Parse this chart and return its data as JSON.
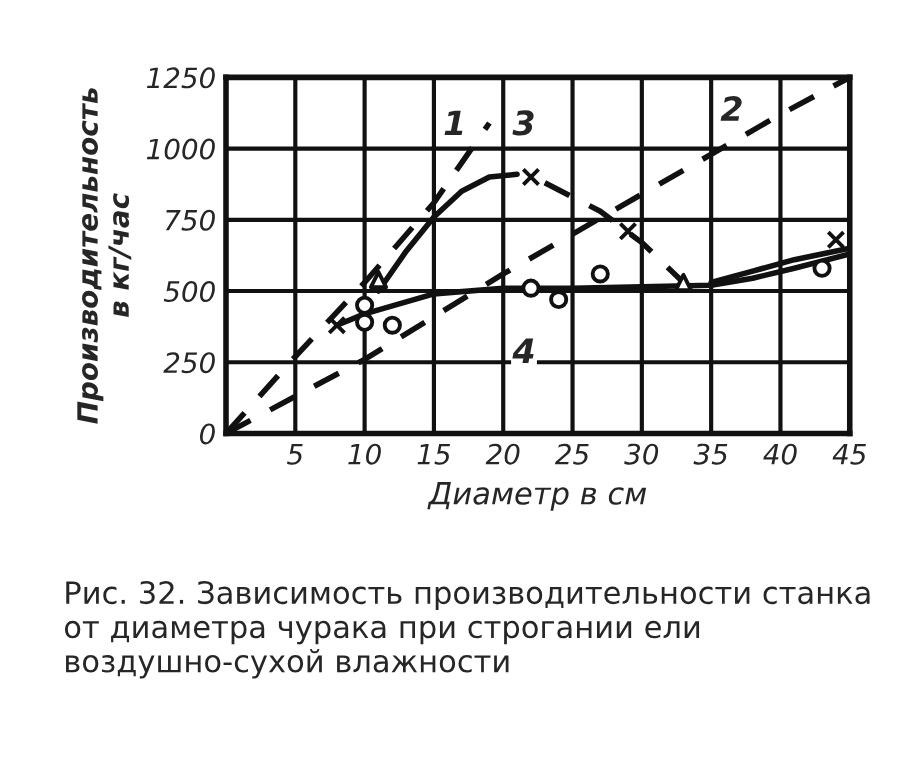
{
  "chart_data": {
    "type": "line",
    "xlabel": "Диаметр в см",
    "ylabel": "Производительность\nв кг/час",
    "xlim": [
      0,
      45
    ],
    "ylim": [
      0,
      1250
    ],
    "xticks": [
      5,
      10,
      15,
      20,
      25,
      30,
      35,
      40,
      45
    ],
    "yticks": [
      0,
      250,
      500,
      750,
      1000,
      1250
    ],
    "grid": true,
    "legend": false,
    "series": [
      {
        "line_style": "dashed",
        "color": "#111111",
        "x": [
          0,
          5,
          10,
          15,
          19
        ],
        "values": [
          0,
          270,
          530,
          810,
          1090
        ]
      },
      {
        "line_style": "dashed",
        "color": "#111111",
        "x": [
          0,
          10,
          20,
          30,
          40,
          45
        ],
        "values": [
          0,
          260,
          560,
          840,
          1120,
          1250
        ]
      },
      {
        "line_style": "solid",
        "color": "#111111",
        "x": [
          11,
          13,
          15,
          17,
          19,
          21
        ],
        "values": [
          500,
          640,
          760,
          850,
          900,
          910
        ]
      },
      {
        "line_style": "dashed",
        "color": "#111111",
        "x": [
          23,
          27,
          30,
          33
        ],
        "values": [
          880,
          780,
          670,
          530
        ]
      },
      {
        "line_style": "solid",
        "color": "#111111",
        "x": [
          35,
          38,
          41,
          45
        ],
        "values": [
          530,
          570,
          610,
          650
        ]
      },
      {
        "line_style": "solid",
        "color": "#111111",
        "x": [
          8,
          10,
          15,
          20,
          25,
          30,
          35,
          38,
          41,
          45
        ],
        "values": [
          380,
          420,
          490,
          510,
          510,
          515,
          520,
          545,
          580,
          630
        ]
      },
      {
        "type": "scatter",
        "marker": "cross",
        "color": "#111111",
        "x": [
          8,
          22,
          29,
          44
        ],
        "values": [
          380,
          900,
          710,
          680
        ]
      },
      {
        "type": "scatter",
        "marker": "circle",
        "color": "#111111",
        "x": [
          10,
          10,
          12,
          22,
          24,
          27,
          43
        ],
        "values": [
          450,
          390,
          380,
          510,
          470,
          560,
          580
        ]
      },
      {
        "type": "scatter",
        "marker": "triangle",
        "color": "#111111",
        "x": [
          11,
          33
        ],
        "values": [
          540,
          530
        ]
      }
    ],
    "annotations": [
      {
        "text": "1",
        "x": 16.5,
        "y": 1080
      },
      {
        "text": "2",
        "x": 36.5,
        "y": 1130
      },
      {
        "text": "3",
        "x": 21.5,
        "y": 1080
      },
      {
        "text": "4",
        "x": 21.5,
        "y": 280
      },
      "Рис. 32. Зависимость производительности станка от диаметра чурака при строгании ели воздушно-сухой влажности"
    ]
  }
}
